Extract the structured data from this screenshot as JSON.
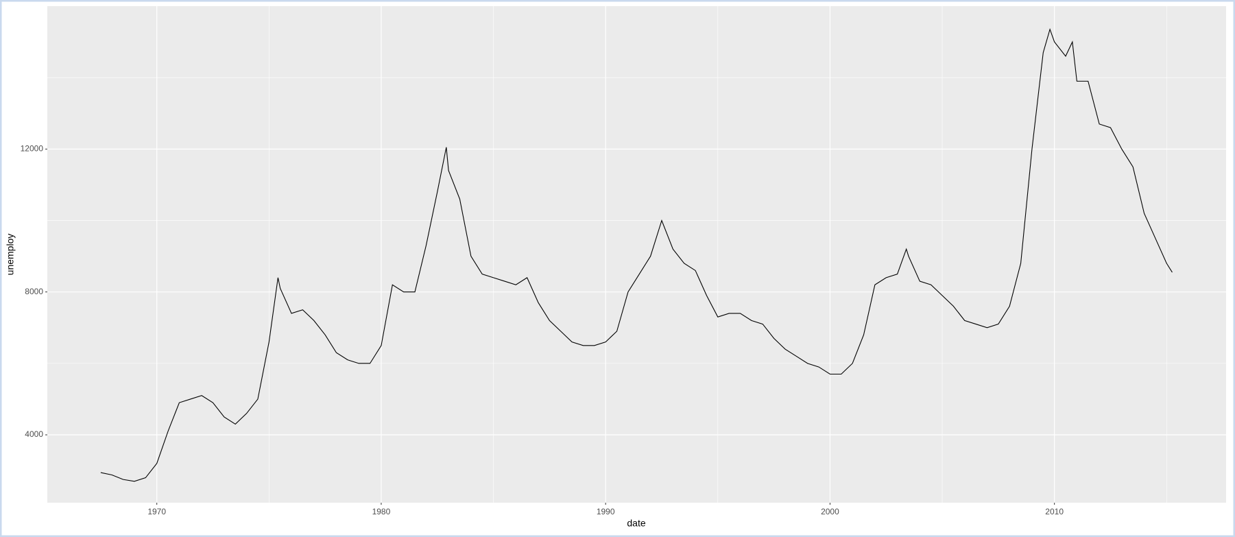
{
  "chart_data": {
    "type": "line",
    "x_label": "date",
    "y_label": "unemploy",
    "x": [
      1967.5,
      1968.0,
      1968.5,
      1969.0,
      1969.5,
      1970.0,
      1970.5,
      1971.0,
      1971.5,
      1972.0,
      1972.5,
      1973.0,
      1973.5,
      1974.0,
      1974.5,
      1975.0,
      1975.4,
      1975.5,
      1976.0,
      1976.5,
      1977.0,
      1977.5,
      1978.0,
      1978.5,
      1979.0,
      1979.5,
      1980.0,
      1980.5,
      1981.0,
      1981.5,
      1982.0,
      1982.5,
      1982.9,
      1983.0,
      1983.5,
      1984.0,
      1984.5,
      1985.0,
      1985.5,
      1986.0,
      1986.5,
      1987.0,
      1987.5,
      1988.0,
      1988.5,
      1989.0,
      1989.5,
      1990.0,
      1990.5,
      1991.0,
      1991.5,
      1992.0,
      1992.5,
      1993.0,
      1993.5,
      1994.0,
      1994.5,
      1995.0,
      1995.5,
      1996.0,
      1996.5,
      1997.0,
      1997.5,
      1998.0,
      1998.5,
      1999.0,
      1999.5,
      2000.0,
      2000.5,
      2001.0,
      2001.5,
      2002.0,
      2002.5,
      2003.0,
      2003.4,
      2003.5,
      2004.0,
      2004.5,
      2005.0,
      2005.5,
      2006.0,
      2006.5,
      2007.0,
      2007.5,
      2008.0,
      2008.5,
      2009.0,
      2009.5,
      2009.8,
      2010.0,
      2010.5,
      2010.8,
      2011.0,
      2011.5,
      2012.0,
      2012.5,
      2013.0,
      2013.5,
      2014.0,
      2014.5,
      2015.0,
      2015.25
    ],
    "series": [
      {
        "name": "unemploy",
        "color": "#000000",
        "values": [
          2944,
          2878,
          2750,
          2700,
          2800,
          3200,
          4100,
          4900,
          5000,
          5100,
          4900,
          4500,
          4300,
          4600,
          5000,
          6600,
          8400,
          8100,
          7400,
          7500,
          7200,
          6800,
          6300,
          6100,
          6000,
          6000,
          6500,
          8200,
          8000,
          8000,
          9300,
          10800,
          12051,
          11400,
          10600,
          9000,
          8500,
          8400,
          8300,
          8200,
          8400,
          7700,
          7200,
          6900,
          6600,
          6500,
          6500,
          6600,
          6900,
          8000,
          8500,
          9000,
          10000,
          9200,
          8800,
          8600,
          7900,
          7300,
          7400,
          7400,
          7200,
          7100,
          6700,
          6400,
          6200,
          6000,
          5900,
          5700,
          5700,
          6000,
          6800,
          8200,
          8400,
          8500,
          9200,
          9000,
          8300,
          8200,
          7900,
          7600,
          7200,
          7100,
          7000,
          7100,
          7600,
          8800,
          12000,
          14700,
          15352,
          15000,
          14600,
          15000,
          13900,
          13900,
          12700,
          12600,
          12000,
          11500,
          10200,
          9500,
          8800,
          8549
        ]
      }
    ],
    "xlim": [
      1965.12,
      2017.65
    ],
    "xticks": [
      1970,
      1980,
      1990,
      2000,
      2010
    ],
    "minor_xticks": [
      1975,
      1985,
      1995,
      2005,
      2015
    ],
    "ylim": [
      2100,
      16000
    ],
    "yticks": [
      4000,
      8000,
      12000
    ],
    "minor_yticks": [
      6000,
      10000,
      14000
    ],
    "grid": true,
    "panel_color": "#ebebeb"
  }
}
